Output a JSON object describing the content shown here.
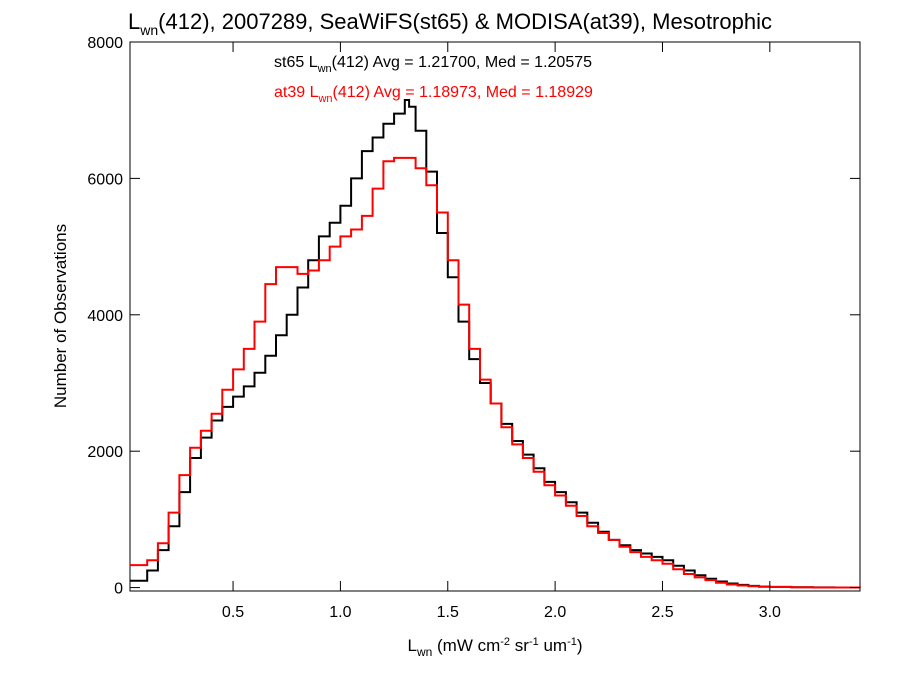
{
  "chart_data": {
    "type": "line",
    "title": {
      "main": "L",
      "sub": "wn",
      "rest": "(412), 2007289, SeaWiFS(st65) & MODISA(at39), Mesotrophic"
    },
    "xlabel": {
      "main": "L",
      "sub": "wn",
      "units_1": " (mW cm",
      "sup_1": "-2",
      "units_2": " sr",
      "sup_2": "-1",
      "units_3": " um",
      "sup_3": "-1",
      "units_4": ")"
    },
    "ylabel": "Number of Observations",
    "xlim": [
      0.02,
      3.42
    ],
    "ylim": [
      -50,
      8000
    ],
    "xticks": [
      0.5,
      1.0,
      1.5,
      2.0,
      2.5,
      3.0
    ],
    "xtick_labels": [
      "0.5",
      "1.0",
      "1.5",
      "2.0",
      "2.5",
      "3.0"
    ],
    "yticks": [
      0,
      2000,
      4000,
      6000,
      8000
    ],
    "ytick_labels": [
      "0",
      "2000",
      "4000",
      "6000",
      "8000"
    ],
    "colors": {
      "st65": "#000000",
      "at39": "#ff0000"
    },
    "annotations": [
      {
        "series": "st65",
        "prefix": "st65 L",
        "sub": "wn",
        "rest": "(412) Avg = 1.21700, Med = 1.20575"
      },
      {
        "series": "at39",
        "prefix": "at39 L",
        "sub": "wn",
        "rest": "(412) Avg = 1.18973, Med = 1.18929"
      }
    ],
    "x": [
      0.02,
      0.1,
      0.15,
      0.2,
      0.25,
      0.3,
      0.35,
      0.4,
      0.45,
      0.5,
      0.55,
      0.6,
      0.65,
      0.7,
      0.75,
      0.8,
      0.85,
      0.9,
      0.95,
      1.0,
      1.05,
      1.1,
      1.15,
      1.2,
      1.25,
      1.3,
      1.32,
      1.35,
      1.4,
      1.45,
      1.5,
      1.55,
      1.6,
      1.65,
      1.7,
      1.75,
      1.8,
      1.85,
      1.9,
      1.95,
      2.0,
      2.05,
      2.1,
      2.15,
      2.2,
      2.25,
      2.3,
      2.35,
      2.4,
      2.45,
      2.5,
      2.55,
      2.6,
      2.65,
      2.7,
      2.75,
      2.8,
      2.85,
      2.9,
      2.95,
      3.0,
      3.1,
      3.2,
      3.3,
      3.42
    ],
    "series": [
      {
        "name": "st65",
        "values": [
          100,
          250,
          550,
          900,
          1400,
          1900,
          2200,
          2450,
          2650,
          2800,
          2950,
          3150,
          3400,
          3700,
          4000,
          4400,
          4800,
          5150,
          5350,
          5600,
          6000,
          6400,
          6600,
          6800,
          6950,
          7150,
          7050,
          6700,
          6100,
          5200,
          4550,
          3900,
          3350,
          3000,
          2700,
          2400,
          2150,
          1950,
          1750,
          1550,
          1400,
          1250,
          1100,
          950,
          820,
          700,
          620,
          550,
          500,
          450,
          400,
          320,
          250,
          180,
          130,
          90,
          60,
          40,
          25,
          15,
          10,
          5,
          3,
          2,
          1
        ]
      },
      {
        "name": "at39",
        "values": [
          330,
          400,
          650,
          1100,
          1650,
          2050,
          2300,
          2550,
          2900,
          3200,
          3500,
          3900,
          4450,
          4700,
          4700,
          4600,
          4650,
          4800,
          5000,
          5150,
          5250,
          5450,
          5850,
          6250,
          6300,
          6300,
          6300,
          6150,
          5900,
          5500,
          4800,
          4150,
          3500,
          3050,
          2700,
          2350,
          2100,
          1900,
          1700,
          1500,
          1350,
          1200,
          1050,
          900,
          800,
          700,
          600,
          520,
          450,
          400,
          350,
          270,
          200,
          150,
          110,
          70,
          45,
          30,
          20,
          12,
          8,
          4,
          2,
          1,
          0
        ]
      }
    ]
  }
}
